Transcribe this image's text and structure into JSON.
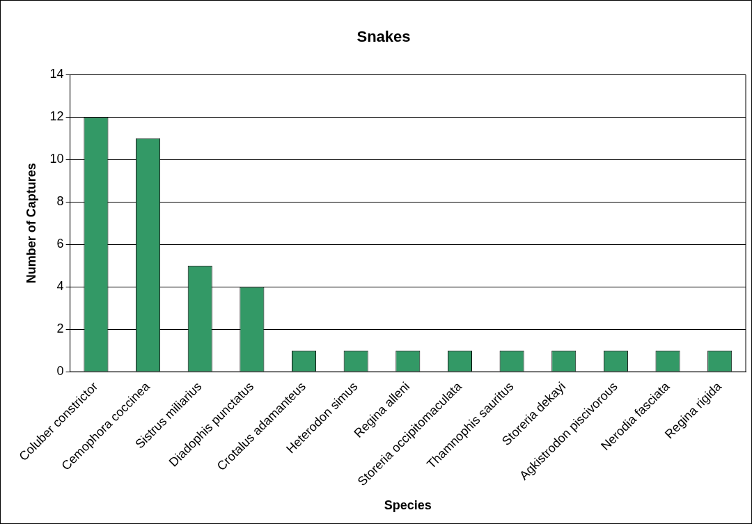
{
  "chart_data": {
    "type": "bar",
    "title": "Snakes",
    "xlabel": "Species",
    "ylabel": "Number of Captures",
    "categories": [
      "Coluber constrictor",
      "Cemophora coccinea",
      "Sistrus miliarius",
      "Diadophis punctatus",
      "Crotalus adamanteus",
      "Heterodon simus",
      "Regina alleni",
      "Storeria occipitomaculata",
      "Thamnophis sauritus",
      "Storeria dekayi",
      "Agkistrodon piscivorous",
      "Nerodia fasciata",
      "Regina rigida"
    ],
    "values": [
      12,
      11,
      5,
      4,
      1,
      1,
      1,
      1,
      1,
      1,
      1,
      1,
      1
    ],
    "color": "#339966",
    "ylim": [
      0,
      14
    ],
    "yticks": [
      0,
      2,
      4,
      6,
      8,
      10,
      12,
      14
    ],
    "grid": "y",
    "legend": false
  }
}
